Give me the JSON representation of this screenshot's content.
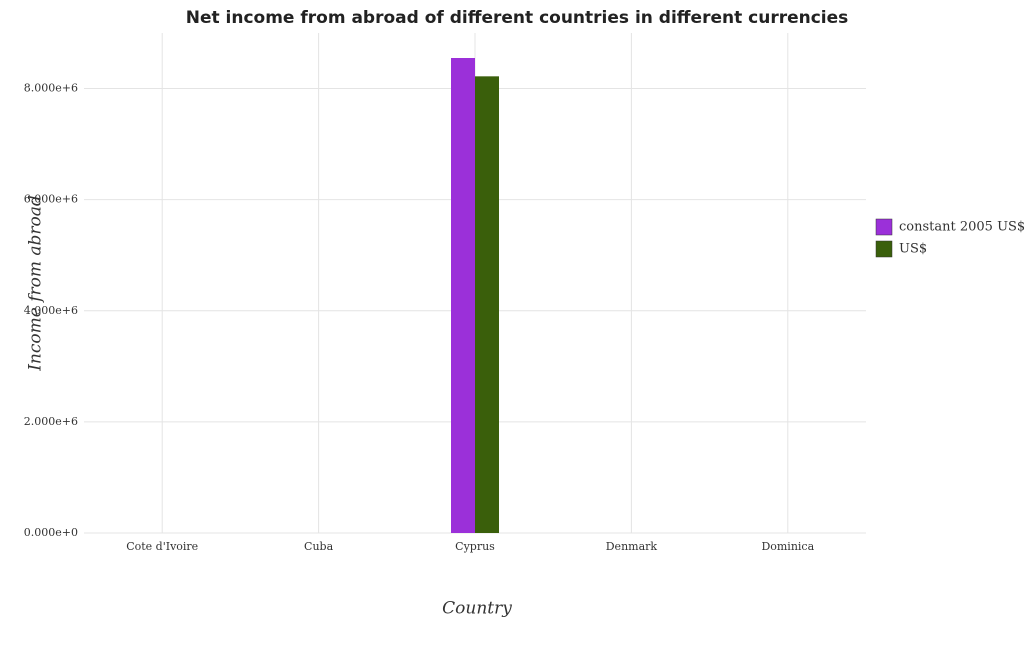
{
  "chart_data": {
    "type": "bar",
    "title": "Net income from abroad of different countries in different currencies",
    "xlabel": "Country",
    "ylabel": "Income from abroad",
    "categories": [
      "Cote d'Ivoire",
      "Cuba",
      "Cyprus",
      "Denmark",
      "Dominica"
    ],
    "series": [
      {
        "name": "constant 2005 US$",
        "color": "#9b30d9",
        "values": [
          0,
          0,
          8550000,
          0,
          0
        ]
      },
      {
        "name": "US$",
        "color": "#3a5f0b",
        "values": [
          0,
          0,
          8220000,
          0,
          0
        ]
      }
    ],
    "ylim": [
      0,
      9000000
    ],
    "yticks": [
      {
        "value": 0,
        "label": "0.000e+0"
      },
      {
        "value": 2000000,
        "label": "2.000e+6"
      },
      {
        "value": 4000000,
        "label": "4.000e+6"
      },
      {
        "value": 6000000,
        "label": "6.000e+6"
      },
      {
        "value": 8000000,
        "label": "8.000e+6"
      }
    ],
    "grid": true,
    "legend": "right"
  }
}
